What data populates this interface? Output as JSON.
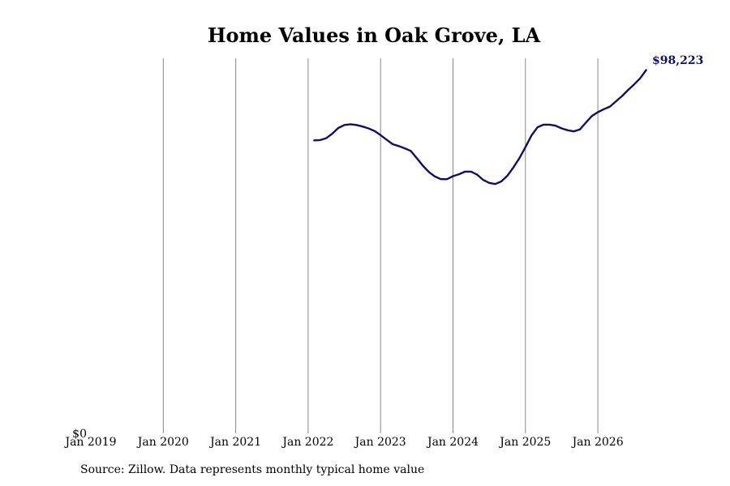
{
  "chart_data": {
    "type": "line",
    "title": "Home Values in Oak Grove, LA",
    "xlabel": "",
    "ylabel": "",
    "x_ticks": [
      "Jan 2019",
      "Jan 2020",
      "Jan 2021",
      "Jan 2022",
      "Jan 2023",
      "Jan 2024",
      "Jan 2025",
      "Jan 2026"
    ],
    "y_tick_label": "$0",
    "ylim": [
      0,
      98223
    ],
    "xlim": [
      "2019-01",
      "2026-08"
    ],
    "grid": "vertical",
    "end_label": "$98,223",
    "series": [
      {
        "color": "#101060",
        "points": [
          [
            "2022-02",
            77900
          ],
          [
            "2022-03",
            78000
          ],
          [
            "2022-04",
            78500
          ],
          [
            "2022-05",
            79700
          ],
          [
            "2022-06",
            81200
          ],
          [
            "2022-07",
            82000
          ],
          [
            "2022-08",
            82200
          ],
          [
            "2022-09",
            82000
          ],
          [
            "2022-10",
            81600
          ],
          [
            "2022-11",
            81100
          ],
          [
            "2022-12",
            80400
          ],
          [
            "2023-01",
            79300
          ],
          [
            "2023-02",
            78100
          ],
          [
            "2023-03",
            76900
          ],
          [
            "2023-04",
            76400
          ],
          [
            "2023-05",
            75800
          ],
          [
            "2023-06",
            75100
          ],
          [
            "2023-07",
            73200
          ],
          [
            "2023-08",
            71200
          ],
          [
            "2023-09",
            69500
          ],
          [
            "2023-10",
            68300
          ],
          [
            "2023-11",
            67600
          ],
          [
            "2023-12",
            67600
          ],
          [
            "2024-01",
            68400
          ],
          [
            "2024-02",
            68900
          ],
          [
            "2024-03",
            69600
          ],
          [
            "2024-04",
            69600
          ],
          [
            "2024-05",
            68800
          ],
          [
            "2024-06",
            67400
          ],
          [
            "2024-07",
            66600
          ],
          [
            "2024-08",
            66300
          ],
          [
            "2024-09",
            67000
          ],
          [
            "2024-10",
            68500
          ],
          [
            "2024-11",
            70700
          ],
          [
            "2024-12",
            73200
          ],
          [
            "2025-01",
            76100
          ],
          [
            "2025-02",
            79200
          ],
          [
            "2025-03",
            81400
          ],
          [
            "2025-04",
            82100
          ],
          [
            "2025-05",
            82100
          ],
          [
            "2025-06",
            81800
          ],
          [
            "2025-07",
            81100
          ],
          [
            "2025-08",
            80600
          ],
          [
            "2025-09",
            80300
          ],
          [
            "2025-10",
            80800
          ],
          [
            "2025-11",
            82600
          ],
          [
            "2025-12",
            84400
          ],
          [
            "2026-01",
            85400
          ],
          [
            "2026-02",
            86200
          ],
          [
            "2026-03",
            86900
          ],
          [
            "2026-04",
            88300
          ],
          [
            "2026-05",
            89700
          ],
          [
            "2026-06",
            91300
          ],
          [
            "2026-07",
            92800
          ],
          [
            "2026-08",
            94400
          ],
          [
            "2026-09",
            96600
          ]
        ]
      }
    ]
  },
  "source_note": "Source: Zillow. Data represents monthly typical home value"
}
